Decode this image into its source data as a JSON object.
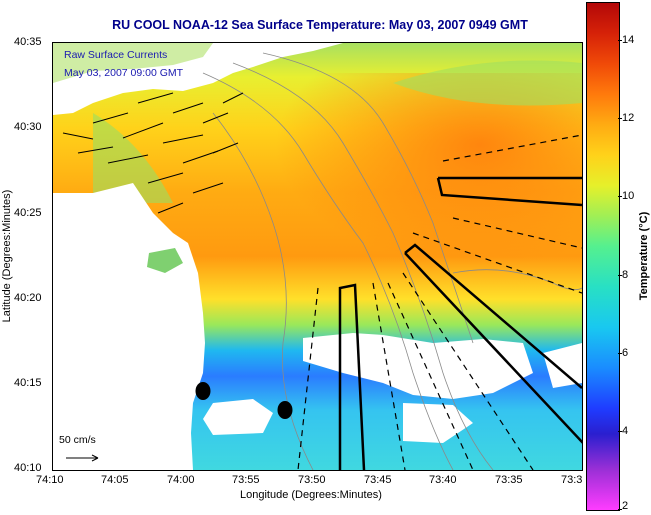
{
  "title": "RU COOL  NOAA-12  Sea Surface Temperature:  May 03, 2007 0949 GMT",
  "overlay": {
    "legend_line1": "Raw Surface Currents",
    "legend_line2": "May 03, 2007 09:00 GMT",
    "scale_label": "50 cm/s"
  },
  "axes": {
    "xlabel": "Longitude (Degrees:Minutes)",
    "ylabel": "Latitude (Degrees:Minutes)",
    "x_ticks": [
      "74:10",
      "74:05",
      "74:00",
      "73:55",
      "73:50",
      "73:45",
      "73:40",
      "73:35",
      "73:3"
    ],
    "y_ticks": [
      "40:35",
      "40:30",
      "40:25",
      "40:20",
      "40:15",
      "40:10"
    ]
  },
  "colorbar": {
    "title": "Temperature (°C)",
    "ticks": [
      "14",
      "12",
      "10",
      "8",
      "6",
      "4",
      "2"
    ],
    "range": [
      2,
      15
    ],
    "colors": {
      "low": "#ff3cff",
      "mid": "#55f08f",
      "high": "#b30808"
    }
  },
  "map": {
    "land_color": "#ffffff",
    "cloud_color": "#ffffff",
    "station_markers": 2
  }
}
